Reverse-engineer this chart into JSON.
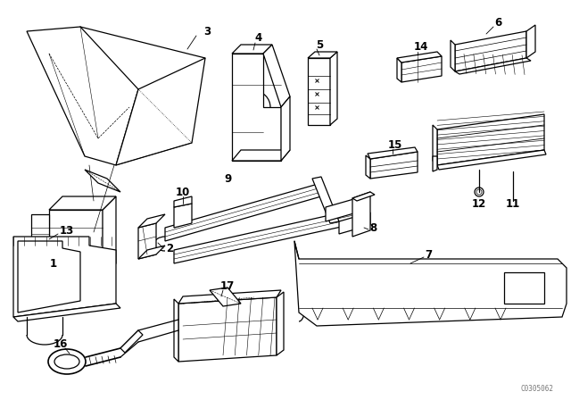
{
  "background_color": "#ffffff",
  "line_color": "#000000",
  "lw": 0.9,
  "watermark": "C0305062",
  "fig_w": 6.4,
  "fig_h": 4.48,
  "dpi": 100,
  "label_fontsize": 8.5,
  "label_bold": true
}
